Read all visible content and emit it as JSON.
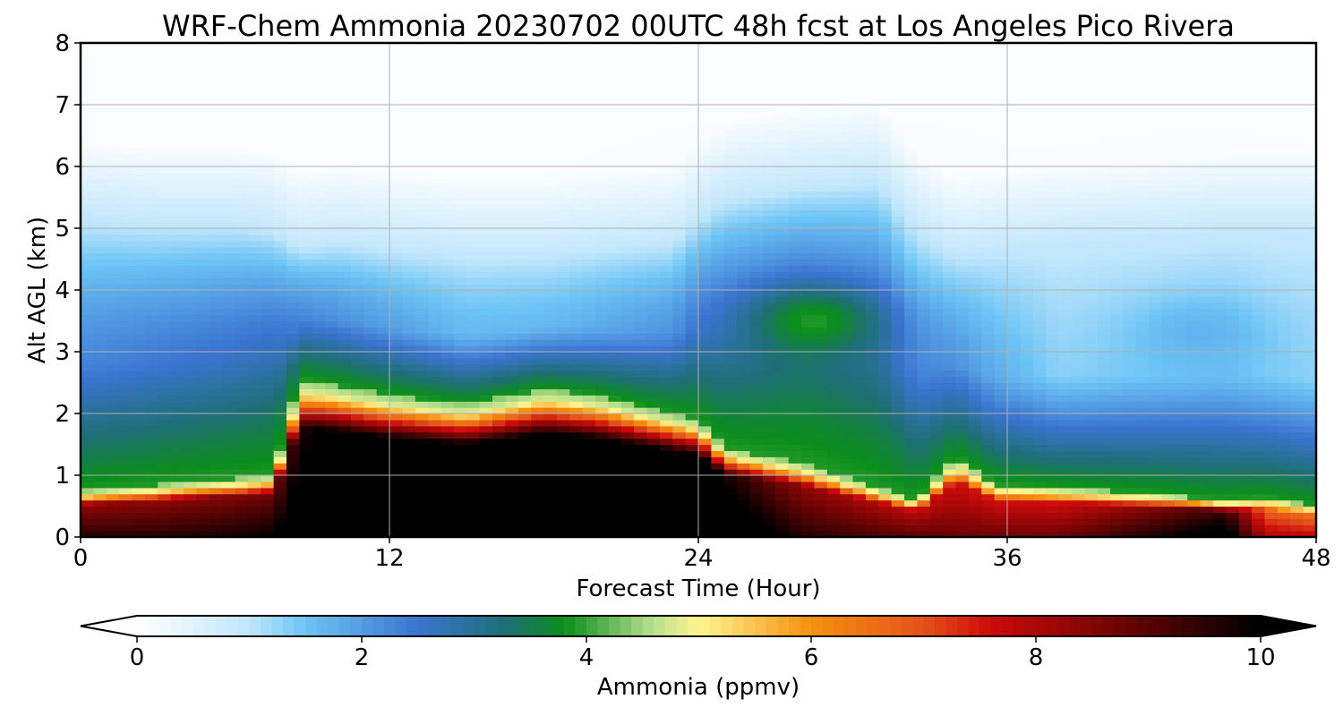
{
  "chart_data": {
    "type": "heatmap",
    "title": "WRF-Chem Ammonia  20230702 00UTC 48h fcst at Los Angeles Pico Rivera",
    "xlabel": "Forecast Time (Hour)",
    "ylabel": "Alt AGL (km)",
    "xlim": [
      0,
      48
    ],
    "ylim": [
      0,
      8
    ],
    "xticks": [
      "0",
      "12",
      "24",
      "36",
      "48"
    ],
    "yticks": [
      "0",
      "1",
      "2",
      "3",
      "4",
      "5",
      "6",
      "7",
      "8"
    ],
    "grid": true,
    "colorbar": {
      "label": "Ammonia  (ppmv)",
      "orientation": "horizontal",
      "placement": "bottom",
      "extend": "both",
      "range": [
        0,
        10
      ],
      "ticks": [
        "0",
        "2",
        "4",
        "6",
        "8",
        "10"
      ],
      "stops": [
        {
          "v": 0,
          "c": "#ffffff"
        },
        {
          "v": 1,
          "c": "#bfe6fb"
        },
        {
          "v": 1.5,
          "c": "#6cc4f5"
        },
        {
          "v": 2.5,
          "c": "#3a74d0"
        },
        {
          "v": 3.3,
          "c": "#1d6f73"
        },
        {
          "v": 3.8,
          "c": "#0b8e1a"
        },
        {
          "v": 4.6,
          "c": "#b8e08e"
        },
        {
          "v": 5.0,
          "c": "#fff590"
        },
        {
          "v": 6.0,
          "c": "#f7910f"
        },
        {
          "v": 7.0,
          "c": "#e4521a"
        },
        {
          "v": 7.6,
          "c": "#cc0a0a"
        },
        {
          "v": 8.6,
          "c": "#7a0404"
        },
        {
          "v": 10,
          "c": "#000000"
        }
      ]
    },
    "profile": {
      "hours": [
        0,
        3,
        6,
        7.5,
        8.5,
        10,
        12,
        15,
        18,
        20,
        23,
        24,
        25,
        28,
        31,
        32.5,
        34,
        35.5,
        38,
        42,
        44.5,
        46,
        48
      ],
      "surface_layer_top_km": [
        0.75,
        0.85,
        0.95,
        1.0,
        2.55,
        2.45,
        2.3,
        2.15,
        2.4,
        2.3,
        2.0,
        1.9,
        1.45,
        1.2,
        0.8,
        0.6,
        1.3,
        0.85,
        0.8,
        0.7,
        0.6,
        0.65,
        0.5
      ],
      "surface_layer_value_ppmv": [
        7.8,
        7.8,
        8.0,
        8.2,
        9.0,
        10,
        10,
        10,
        10,
        10,
        10,
        10,
        9.2,
        7.8,
        7.4,
        7.2,
        7.0,
        7.0,
        7.0,
        8.0,
        8.8,
        6.2,
        6.0
      ],
      "elevated_layer_top_km": [
        5.2,
        5.1,
        5.1,
        5.0,
        4.7,
        4.8,
        4.7,
        4.6,
        4.6,
        4.7,
        4.8,
        5.2,
        5.5,
        5.7,
        5.8,
        5.0,
        4.6,
        4.7,
        4.8,
        4.9,
        5.0,
        5.0,
        5.0
      ],
      "elevated_layer_value_ppmv": [
        2.6,
        2.8,
        3.0,
        3.2,
        2.6,
        2.4,
        2.2,
        1.8,
        1.8,
        2.0,
        2.4,
        2.8,
        3.0,
        3.4,
        3.2,
        2.6,
        2.4,
        2.0,
        1.4,
        1.6,
        1.7,
        1.5,
        1.4
      ]
    },
    "features": [
      {
        "hour": 28.5,
        "alt_km": 3.5,
        "value_ppmv": 3.9,
        "note": "elevated maximum"
      },
      {
        "hour": 43.5,
        "alt_km": 3.3,
        "value_ppmv": 1.7,
        "note": "weak elevated maximum"
      },
      {
        "hour": 12,
        "alt_km": 1.0,
        "value_ppmv": 10,
        "note": "near-surface core"
      }
    ]
  }
}
